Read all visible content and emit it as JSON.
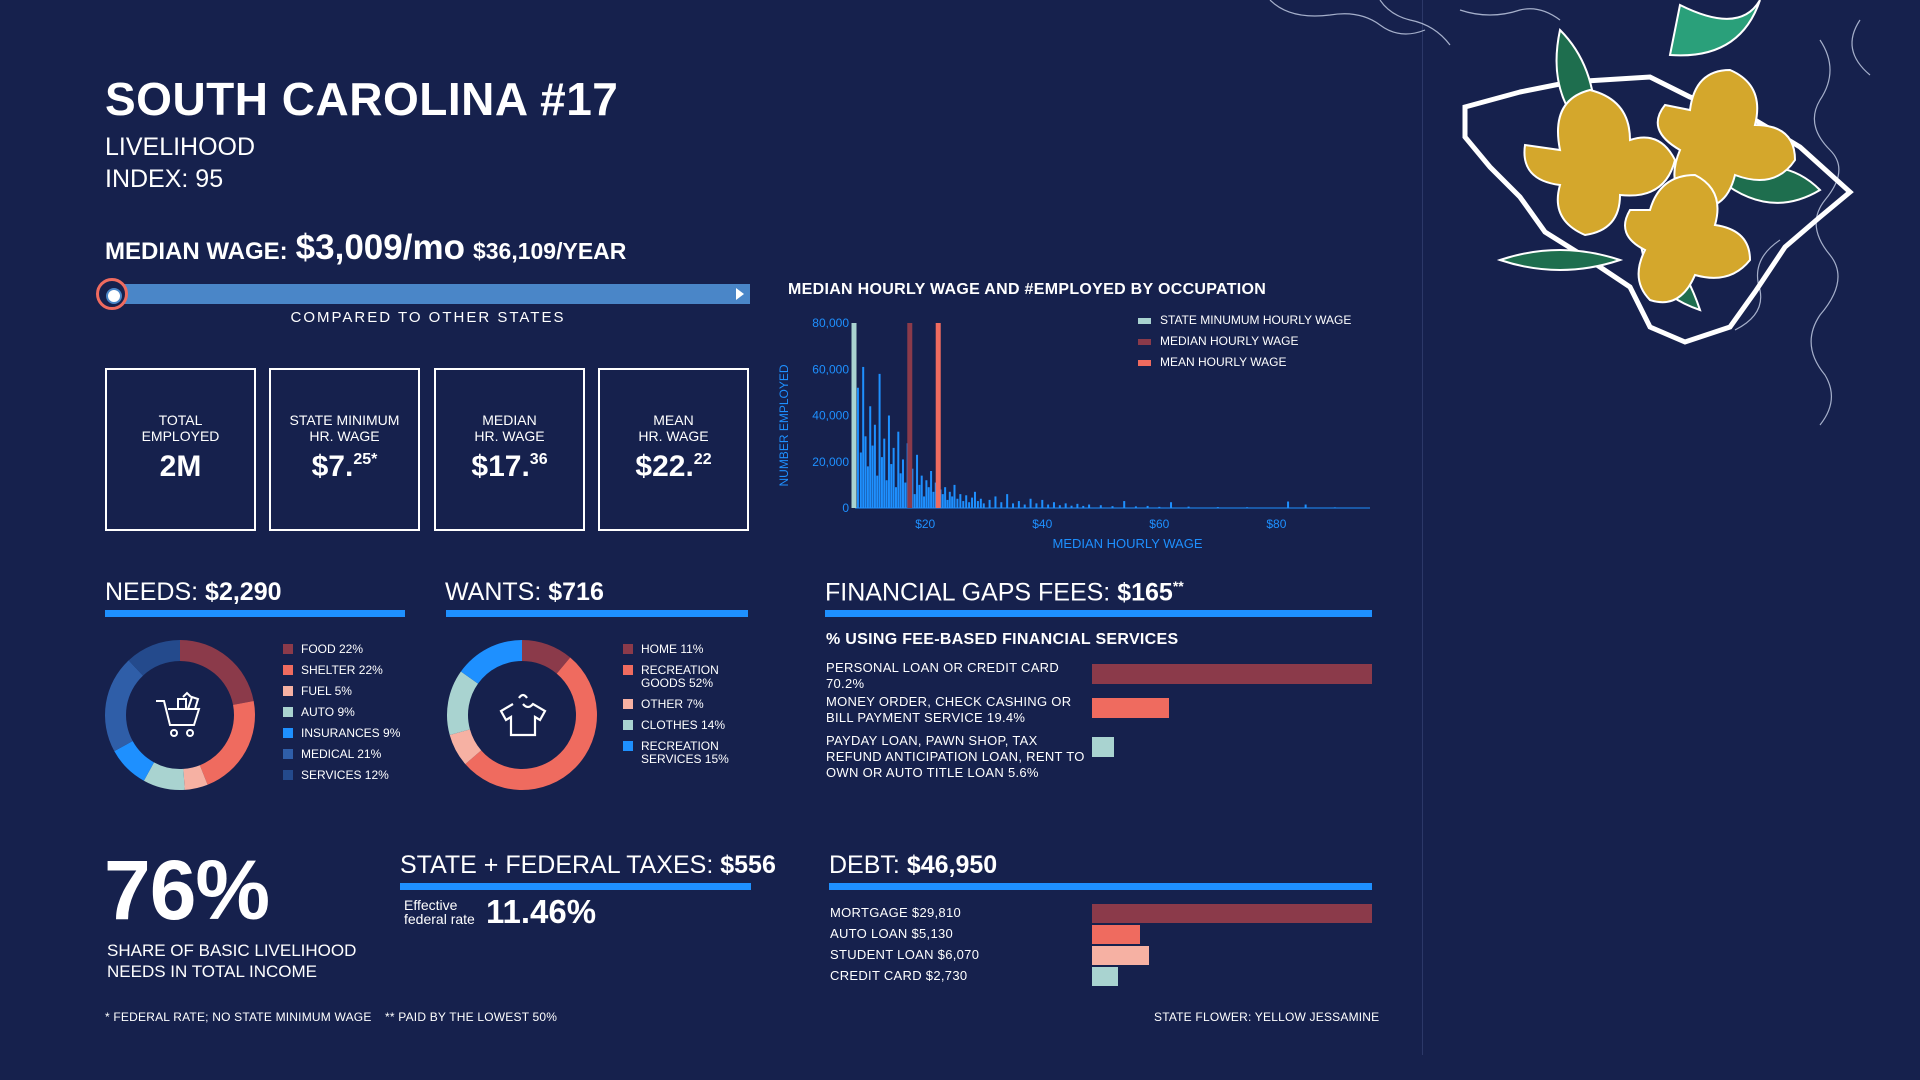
{
  "header": {
    "title": "SOUTH CAROLINA #17",
    "subtitle_line1": "LIVELIHOOD",
    "subtitle_line2": "INDEX: 95"
  },
  "median_wage": {
    "label": "MEDIAN WAGE:",
    "monthly": "$3,009/mo",
    "yearly": "$36,109/YEAR",
    "compared_label": "COMPARED TO OTHER STATES",
    "rank_position_fraction": 0.0
  },
  "stats": [
    {
      "label_line1": "TOTAL",
      "label_line2": "EMPLOYED",
      "value": "2M",
      "sup": ""
    },
    {
      "label_line1": "STATE MINIMUM",
      "label_line2": "HR. WAGE",
      "value": "$7.",
      "sup": "25*"
    },
    {
      "label_line1": "MEDIAN",
      "label_line2": "HR. WAGE",
      "value": "$17.",
      "sup": "36"
    },
    {
      "label_line1": "MEAN",
      "label_line2": "HR. WAGE",
      "value": "$22.",
      "sup": "22"
    }
  ],
  "needs": {
    "label": "NEEDS:",
    "amount": "$2,290",
    "icon": "shopping-cart-icon",
    "items": [
      {
        "label": "FOOD 22%",
        "pct": 22,
        "color": "#8b3a4a"
      },
      {
        "label": "SHELTER 22%",
        "pct": 22,
        "color": "#ef6b5f"
      },
      {
        "label": "FUEL 5%",
        "pct": 5,
        "color": "#f6b1a3"
      },
      {
        "label": "AUTO 9%",
        "pct": 9,
        "color": "#a9d3d0"
      },
      {
        "label": "INSURANCES 9%",
        "pct": 9,
        "color": "#1e90ff"
      },
      {
        "label": "MEDICAL 21%",
        "pct": 21,
        "color": "#2f5ea8"
      },
      {
        "label": "SERVICES 12%",
        "pct": 12,
        "color": "#244a8c"
      }
    ]
  },
  "wants": {
    "label": "WANTS:",
    "amount": "$716",
    "icon": "tshirt-icon",
    "items": [
      {
        "label": "HOME 11%",
        "pct": 11,
        "color": "#8b3a4a"
      },
      {
        "label": "RECREATION GOODS 52%",
        "pct": 52,
        "color": "#ef6b5f"
      },
      {
        "label": "OTHER 7%",
        "pct": 7,
        "color": "#f6b1a3"
      },
      {
        "label": "CLOTHES 14%",
        "pct": 14,
        "color": "#a9d3d0"
      },
      {
        "label": "RECREATION SERVICES 15%",
        "pct": 15,
        "color": "#1e90ff"
      }
    ]
  },
  "financial_gaps": {
    "label": "FINANCIAL GAPS FEES:",
    "amount": "$165",
    "sup": "**",
    "subtitle": "% USING FEE-BASED FINANCIAL SERVICES",
    "items": [
      {
        "label": "PERSONAL LOAN OR CREDIT CARD 70.2%",
        "pct": 70.2,
        "color": "#8b3a4a"
      },
      {
        "label": "MONEY ORDER, CHECK CASHING OR BILL PAYMENT SERVICE 19.4%",
        "pct": 19.4,
        "color": "#ef6b5f"
      },
      {
        "label": "PAYDAY LOAN, PAWN SHOP, TAX REFUND ANTICIPATION LOAN, RENT TO OWN OR AUTO TITLE LOAN 5.6%",
        "pct": 5.6,
        "color": "#a9d3d0"
      }
    ]
  },
  "livelihood_share": {
    "value": "76%",
    "text_line1": "SHARE OF BASIC LIVELIHOOD",
    "text_line2": "NEEDS IN TOTAL INCOME"
  },
  "taxes": {
    "label": "STATE + FEDERAL TAXES:",
    "amount": "$556",
    "rate_label_line1": "Effective",
    "rate_label_line2": "federal rate",
    "rate_value": "11.46%"
  },
  "debt": {
    "label": "DEBT:",
    "amount": "$46,950",
    "items": [
      {
        "label": "MORTGAGE $29,810",
        "value": 29810,
        "color": "#8b3a4a"
      },
      {
        "label": "AUTO LOAN $5,130",
        "value": 5130,
        "color": "#ef6b5f"
      },
      {
        "label": "STUDENT LOAN $6,070",
        "value": 6070,
        "color": "#f6b1a3"
      },
      {
        "label": "CREDIT CARD $2,730",
        "value": 2730,
        "color": "#a9d3d0"
      }
    ]
  },
  "footnotes": {
    "note1": "* FEDERAL RATE; NO STATE MINIMUM WAGE",
    "note2": "** PAID BY THE LOWEST 50%",
    "flower": "STATE FLOWER: YELLOW JESSAMINE"
  },
  "chart_data": {
    "type": "bar",
    "title": "MEDIAN HOURLY WAGE AND #EMPLOYED BY OCCUPATION",
    "xlabel": "MEDIAN HOURLY WAGE",
    "ylabel": "NUMBER EMPLOYED",
    "xlim": [
      8,
      96
    ],
    "ylim": [
      0,
      80000
    ],
    "x_ticks": [
      "$20",
      "$40",
      "$60",
      "$80"
    ],
    "x_tick_values": [
      20,
      40,
      60,
      80
    ],
    "y_ticks": [
      "80,000",
      "60,000",
      "40,000",
      "20,000",
      "0"
    ],
    "y_tick_values": [
      80000,
      60000,
      40000,
      20000,
      0
    ],
    "reference_lines": [
      {
        "name": "STATE MINUMUM HOURLY WAGE",
        "x": 7.25,
        "color": "#a9d3d0"
      },
      {
        "name": "MEDIAN HOURLY WAGE",
        "x": 17.36,
        "color": "#8b3a4a"
      },
      {
        "name": "MEAN HOURLY WAGE",
        "x": 22.22,
        "color": "#ef6b5f"
      }
    ],
    "series": [
      {
        "color": "#1e90ff",
        "points": [
          [
            8.5,
            52000
          ],
          [
            9.0,
            24000
          ],
          [
            9.4,
            61000
          ],
          [
            9.8,
            31000
          ],
          [
            10.2,
            18000
          ],
          [
            10.6,
            44000
          ],
          [
            11.0,
            27000
          ],
          [
            11.4,
            36000
          ],
          [
            11.8,
            14000
          ],
          [
            12.2,
            58000
          ],
          [
            12.6,
            22000
          ],
          [
            13.0,
            30000
          ],
          [
            13.4,
            12000
          ],
          [
            13.8,
            40000
          ],
          [
            14.2,
            19000
          ],
          [
            14.6,
            26000
          ],
          [
            15.0,
            9000
          ],
          [
            15.4,
            33000
          ],
          [
            15.8,
            15000
          ],
          [
            16.2,
            21000
          ],
          [
            16.6,
            11000
          ],
          [
            17.0,
            28000
          ],
          [
            17.4,
            8000
          ],
          [
            17.8,
            17000
          ],
          [
            18.2,
            6000
          ],
          [
            18.6,
            23000
          ],
          [
            19.0,
            10000
          ],
          [
            19.4,
            14000
          ],
          [
            19.8,
            5000
          ],
          [
            20.2,
            12000
          ],
          [
            20.6,
            9000
          ],
          [
            21.0,
            16000
          ],
          [
            21.4,
            7000
          ],
          [
            21.8,
            11000
          ],
          [
            22.2,
            4000
          ],
          [
            22.6,
            8000
          ],
          [
            23.0,
            6000
          ],
          [
            23.4,
            9000
          ],
          [
            23.8,
            3500
          ],
          [
            24.2,
            7000
          ],
          [
            24.6,
            5000
          ],
          [
            25.0,
            10000
          ],
          [
            25.5,
            4000
          ],
          [
            26.0,
            6000
          ],
          [
            26.5,
            3000
          ],
          [
            27.0,
            5500
          ],
          [
            27.5,
            2500
          ],
          [
            28.0,
            4500
          ],
          [
            28.5,
            7000
          ],
          [
            29.0,
            3000
          ],
          [
            29.5,
            4000
          ],
          [
            30.0,
            2000
          ],
          [
            31.0,
            3500
          ],
          [
            32.0,
            5000
          ],
          [
            33.0,
            2500
          ],
          [
            34.0,
            6000
          ],
          [
            35.0,
            2000
          ],
          [
            36.0,
            3000
          ],
          [
            37.0,
            1500
          ],
          [
            38.0,
            4000
          ],
          [
            39.0,
            2000
          ],
          [
            40.0,
            3500
          ],
          [
            41.0,
            1500
          ],
          [
            42.0,
            2500
          ],
          [
            43.0,
            1200
          ],
          [
            44.0,
            2000
          ],
          [
            45.0,
            1000
          ],
          [
            46.0,
            1800
          ],
          [
            47.0,
            900
          ],
          [
            48.0,
            1500
          ],
          [
            50.0,
            1200
          ],
          [
            52.0,
            800
          ],
          [
            54.0,
            3000
          ],
          [
            56.0,
            700
          ],
          [
            58.0,
            900
          ],
          [
            60.0,
            500
          ],
          [
            62.0,
            2500
          ],
          [
            65.0,
            600
          ],
          [
            70.0,
            400
          ],
          [
            75.0,
            350
          ],
          [
            82.0,
            2800
          ],
          [
            85.0,
            1500
          ],
          [
            90.0,
            300
          ]
        ]
      }
    ]
  }
}
